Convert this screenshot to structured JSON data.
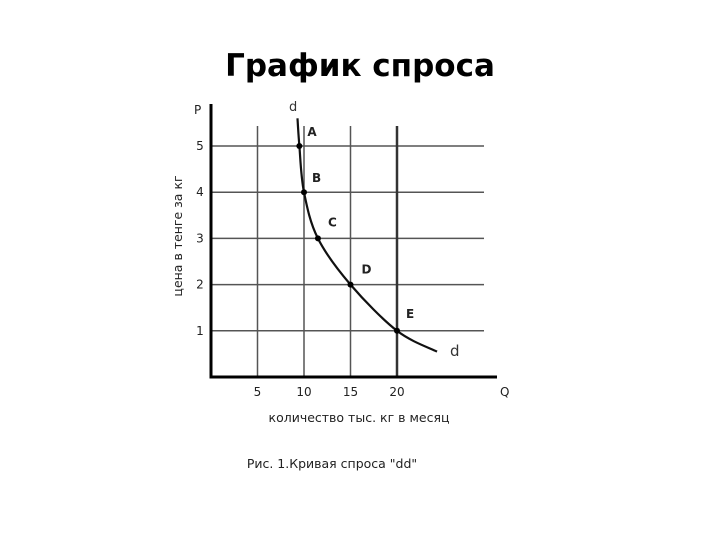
{
  "slide": {
    "title": "График спроса"
  },
  "chart_data": {
    "type": "line",
    "title": "",
    "xlabel": "количество тыс. кг в месяц",
    "ylabel": "цена в тенге за кг",
    "x_axis_letter": "Q",
    "y_axis_letter": "P",
    "x_ticks": [
      5,
      10,
      15,
      20
    ],
    "y_ticks": [
      1,
      2,
      3,
      4,
      5
    ],
    "xlim": [
      0,
      25.5
    ],
    "ylim": [
      0,
      5.8
    ],
    "grid": true,
    "series": [
      {
        "name": "d",
        "points": [
          {
            "label": "A",
            "x": 9.5,
            "y": 5
          },
          {
            "label": "B",
            "x": 10,
            "y": 4
          },
          {
            "label": "C",
            "x": 11.5,
            "y": 3
          },
          {
            "label": "D",
            "x": 15,
            "y": 2
          },
          {
            "label": "E",
            "x": 20,
            "y": 1
          }
        ]
      }
    ],
    "curve_labels": [
      "d",
      "d"
    ],
    "caption": "Рис. 1.Кривая спроса \"dd\""
  }
}
